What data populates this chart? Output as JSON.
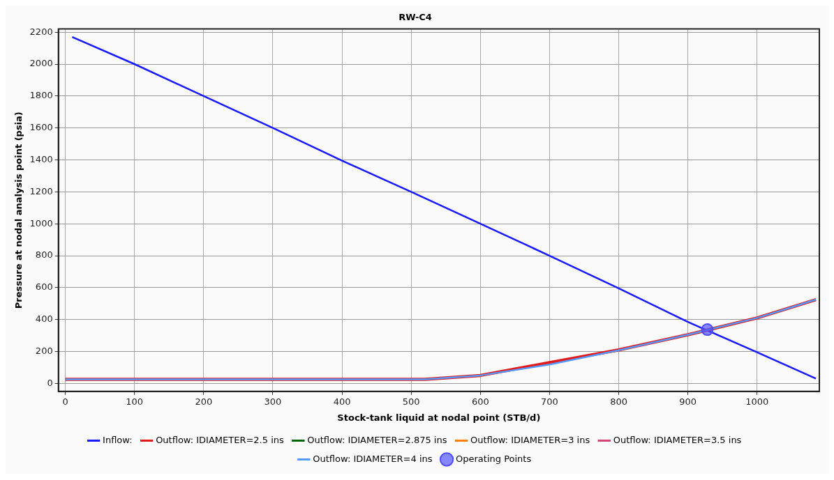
{
  "chart_data": {
    "type": "line",
    "title": "RW-C4",
    "xlabel": "Stock-tank liquid at nodal point (STB/d)",
    "ylabel": "Pressure at nodal analysis point (psia)",
    "xlim": [
      -10,
      1090
    ],
    "ylim": [
      -50,
      2220
    ],
    "xticks": [
      0,
      100,
      200,
      300,
      400,
      500,
      600,
      700,
      800,
      900,
      1000
    ],
    "yticks": [
      0,
      200,
      400,
      600,
      800,
      1000,
      1200,
      1400,
      1600,
      1800,
      2000,
      2200
    ],
    "grid": true,
    "legend": "bottom",
    "marker": "none",
    "line_style": "solid",
    "series": [
      {
        "name": "Inflow:",
        "color": "#1a1aff",
        "x": [
          10,
          100,
          200,
          300,
          400,
          500,
          600,
          700,
          800,
          900,
          1000,
          1085
        ],
        "values": [
          2170,
          2000,
          1800,
          1600,
          1395,
          1200,
          1000,
          800,
          595,
          385,
          195,
          30
        ]
      },
      {
        "name": "Outflow: IDIAMETER=2.5 ins",
        "color": "#e31a1c",
        "x": [
          0,
          100,
          200,
          300,
          400,
          500,
          520,
          600,
          700,
          800,
          900,
          1000,
          1030,
          1085
        ],
        "values": [
          25,
          25,
          25,
          25,
          25,
          25,
          25,
          50,
          130,
          210,
          305,
          410,
          450,
          525
        ]
      },
      {
        "name": "Outflow: IDIAMETER=2.875 ins",
        "color": "#006400"
      },
      {
        "name": "Outflow: IDIAMETER=3 ins",
        "color": "#ff7f0e"
      },
      {
        "name": "Outflow: IDIAMETER=3.5 ins",
        "color": "#d6457a"
      },
      {
        "name": "Outflow: IDIAMETER=4 ins",
        "color": "#5599ff",
        "x": [
          0,
          100,
          200,
          300,
          400,
          500,
          520,
          600,
          700,
          800,
          900,
          1000,
          1030,
          1085
        ],
        "values": [
          25,
          25,
          25,
          25,
          25,
          25,
          25,
          50,
          118,
          208,
          305,
          410,
          450,
          525
        ]
      },
      {
        "name": "Operating Points",
        "type": "scatter",
        "marker": "circle",
        "color": "#4d4dff",
        "x": [
          928
        ],
        "values": [
          337
        ]
      }
    ]
  }
}
